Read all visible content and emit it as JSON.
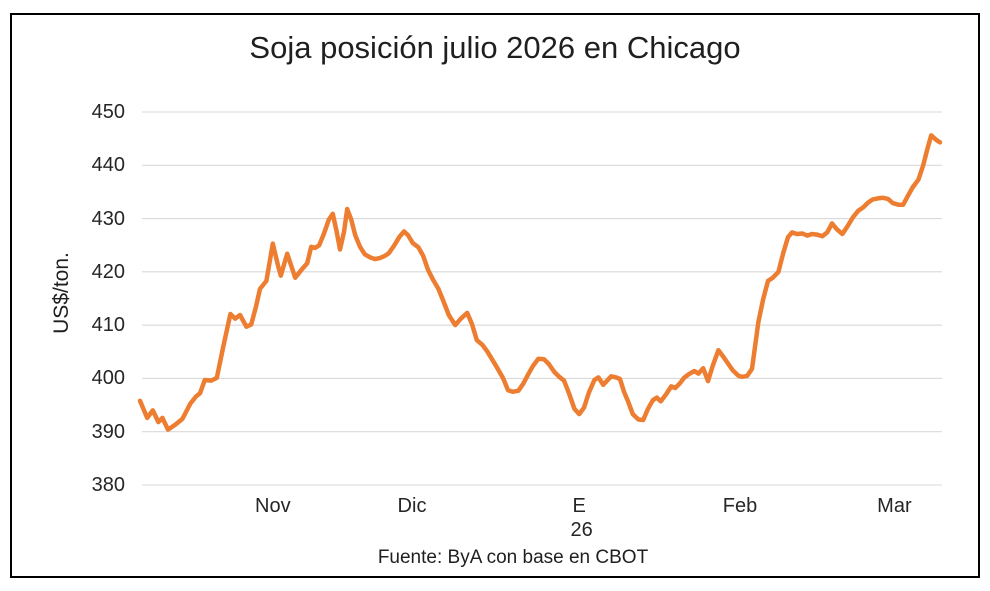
{
  "chart_data": {
    "type": "line",
    "title": "Soja posición julio 2026 en Chicago",
    "ylabel": "US$/ton.",
    "source_note": "Fuente: ByA con base en CBOT",
    "ylim": [
      380,
      450
    ],
    "yticks": [
      380,
      390,
      400,
      410,
      420,
      430,
      440,
      450
    ],
    "grid": "horizontal",
    "legend": "none",
    "line_color": "#ED7D31",
    "grid_color": "#D9D9D9",
    "x_labels": [
      {
        "label": "Nov",
        "pos": 0.166
      },
      {
        "label": "Dic",
        "pos": 0.34
      },
      {
        "label": "E",
        "pos": 0.549
      },
      {
        "label": "Feb",
        "pos": 0.75
      },
      {
        "label": "Mar",
        "pos": 0.943
      }
    ],
    "x_year_label": {
      "label": "26",
      "pos": 0.552
    },
    "series": [
      {
        "points": [
          [
            0.0,
            395.8
          ],
          [
            0.009,
            392.6
          ],
          [
            0.016,
            394.0
          ],
          [
            0.023,
            391.8
          ],
          [
            0.028,
            392.6
          ],
          [
            0.035,
            390.4
          ],
          [
            0.044,
            391.3
          ],
          [
            0.053,
            392.4
          ],
          [
            0.063,
            395.3
          ],
          [
            0.07,
            396.6
          ],
          [
            0.075,
            397.2
          ],
          [
            0.081,
            399.7
          ],
          [
            0.089,
            399.6
          ],
          [
            0.096,
            400.1
          ],
          [
            0.104,
            405.9
          ],
          [
            0.113,
            412.1
          ],
          [
            0.119,
            411.2
          ],
          [
            0.125,
            411.9
          ],
          [
            0.133,
            409.7
          ],
          [
            0.139,
            410.1
          ],
          [
            0.145,
            413.5
          ],
          [
            0.15,
            416.8
          ],
          [
            0.158,
            418.3
          ],
          [
            0.166,
            425.3
          ],
          [
            0.173,
            420.9
          ],
          [
            0.176,
            419.3
          ],
          [
            0.184,
            423.4
          ],
          [
            0.194,
            418.9
          ],
          [
            0.203,
            420.6
          ],
          [
            0.209,
            421.6
          ],
          [
            0.214,
            424.7
          ],
          [
            0.219,
            424.5
          ],
          [
            0.224,
            425.0
          ],
          [
            0.23,
            427.2
          ],
          [
            0.236,
            429.8
          ],
          [
            0.241,
            430.9
          ],
          [
            0.246,
            427.4
          ],
          [
            0.25,
            424.2
          ],
          [
            0.255,
            427.5
          ],
          [
            0.259,
            431.8
          ],
          [
            0.264,
            429.8
          ],
          [
            0.269,
            426.9
          ],
          [
            0.275,
            424.7
          ],
          [
            0.281,
            423.3
          ],
          [
            0.288,
            422.7
          ],
          [
            0.294,
            422.4
          ],
          [
            0.3,
            422.6
          ],
          [
            0.306,
            423.0
          ],
          [
            0.311,
            423.5
          ],
          [
            0.318,
            425.0
          ],
          [
            0.324,
            426.5
          ],
          [
            0.33,
            427.6
          ],
          [
            0.335,
            426.9
          ],
          [
            0.341,
            425.4
          ],
          [
            0.348,
            424.6
          ],
          [
            0.354,
            423.0
          ],
          [
            0.36,
            420.4
          ],
          [
            0.366,
            418.6
          ],
          [
            0.373,
            416.8
          ],
          [
            0.379,
            414.6
          ],
          [
            0.386,
            411.9
          ],
          [
            0.394,
            410.0
          ],
          [
            0.401,
            411.2
          ],
          [
            0.409,
            412.3
          ],
          [
            0.415,
            410.2
          ],
          [
            0.421,
            407.2
          ],
          [
            0.428,
            406.3
          ],
          [
            0.434,
            405.1
          ],
          [
            0.44,
            403.6
          ],
          [
            0.446,
            402.1
          ],
          [
            0.454,
            400.0
          ],
          [
            0.46,
            397.8
          ],
          [
            0.466,
            397.5
          ],
          [
            0.473,
            397.7
          ],
          [
            0.479,
            399.0
          ],
          [
            0.485,
            400.7
          ],
          [
            0.491,
            402.3
          ],
          [
            0.498,
            403.7
          ],
          [
            0.505,
            403.6
          ],
          [
            0.511,
            402.7
          ],
          [
            0.518,
            401.2
          ],
          [
            0.524,
            400.3
          ],
          [
            0.53,
            399.6
          ],
          [
            0.536,
            397.3
          ],
          [
            0.543,
            394.3
          ],
          [
            0.549,
            393.3
          ],
          [
            0.555,
            394.5
          ],
          [
            0.561,
            397.3
          ],
          [
            0.568,
            399.7
          ],
          [
            0.573,
            400.2
          ],
          [
            0.579,
            398.8
          ],
          [
            0.584,
            399.6
          ],
          [
            0.589,
            400.4
          ],
          [
            0.595,
            400.2
          ],
          [
            0.6,
            399.9
          ],
          [
            0.605,
            397.5
          ],
          [
            0.61,
            395.7
          ],
          [
            0.616,
            393.3
          ],
          [
            0.623,
            392.3
          ],
          [
            0.629,
            392.2
          ],
          [
            0.635,
            394.3
          ],
          [
            0.641,
            395.9
          ],
          [
            0.646,
            396.4
          ],
          [
            0.651,
            395.7
          ],
          [
            0.658,
            397.1
          ],
          [
            0.664,
            398.5
          ],
          [
            0.669,
            398.2
          ],
          [
            0.675,
            399.1
          ],
          [
            0.68,
            400.1
          ],
          [
            0.686,
            400.8
          ],
          [
            0.693,
            401.4
          ],
          [
            0.698,
            400.9
          ],
          [
            0.704,
            401.9
          ],
          [
            0.71,
            399.5
          ],
          [
            0.716,
            402.4
          ],
          [
            0.723,
            405.3
          ],
          [
            0.729,
            404.1
          ],
          [
            0.735,
            402.8
          ],
          [
            0.741,
            401.5
          ],
          [
            0.748,
            400.5
          ],
          [
            0.753,
            400.3
          ],
          [
            0.759,
            400.5
          ],
          [
            0.765,
            401.8
          ],
          [
            0.773,
            410.6
          ],
          [
            0.779,
            414.9
          ],
          [
            0.785,
            418.3
          ],
          [
            0.791,
            418.9
          ],
          [
            0.798,
            420.0
          ],
          [
            0.804,
            423.5
          ],
          [
            0.81,
            426.5
          ],
          [
            0.815,
            427.4
          ],
          [
            0.821,
            427.1
          ],
          [
            0.828,
            427.2
          ],
          [
            0.834,
            426.8
          ],
          [
            0.84,
            427.1
          ],
          [
            0.846,
            427.0
          ],
          [
            0.853,
            426.7
          ],
          [
            0.859,
            427.4
          ],
          [
            0.865,
            429.1
          ],
          [
            0.871,
            428.0
          ],
          [
            0.878,
            427.1
          ],
          [
            0.885,
            428.7
          ],
          [
            0.891,
            430.2
          ],
          [
            0.898,
            431.5
          ],
          [
            0.904,
            432.1
          ],
          [
            0.91,
            433.0
          ],
          [
            0.916,
            433.6
          ],
          [
            0.923,
            433.8
          ],
          [
            0.929,
            433.9
          ],
          [
            0.935,
            433.7
          ],
          [
            0.941,
            432.9
          ],
          [
            0.948,
            432.6
          ],
          [
            0.954,
            432.6
          ],
          [
            0.96,
            434.3
          ],
          [
            0.966,
            435.9
          ],
          [
            0.973,
            437.3
          ],
          [
            0.979,
            440.0
          ],
          [
            0.985,
            443.5
          ],
          [
            0.989,
            445.6
          ],
          [
            0.995,
            444.8
          ],
          [
            1.0,
            444.3
          ]
        ]
      }
    ]
  }
}
